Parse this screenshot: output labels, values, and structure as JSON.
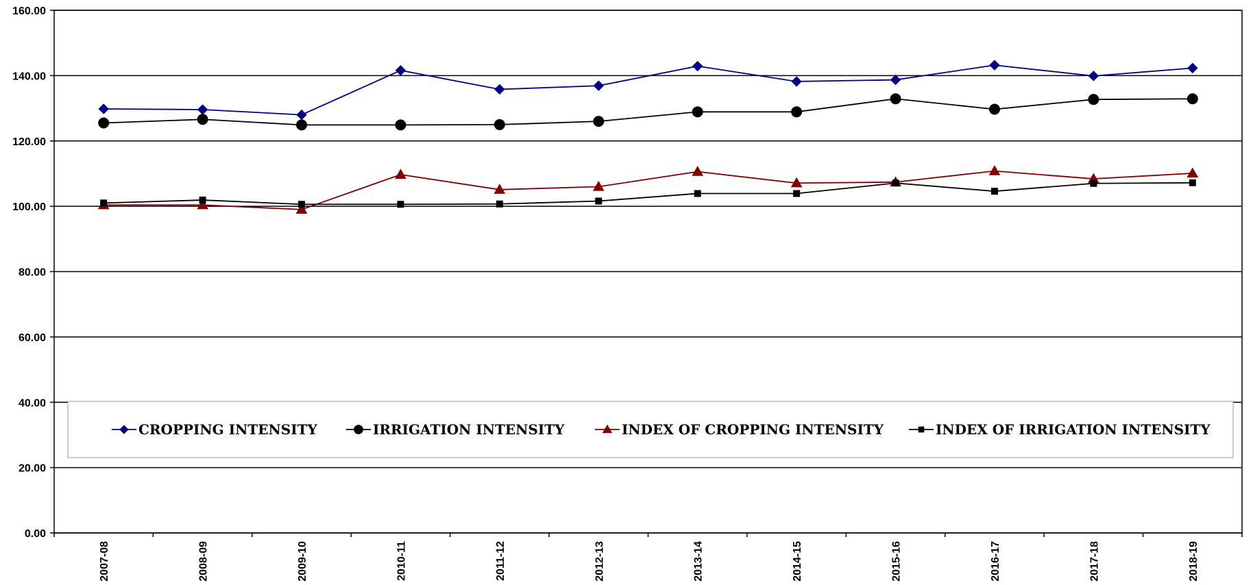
{
  "chart_data": {
    "type": "line",
    "title": "",
    "xlabel": "",
    "ylabel": "",
    "categories": [
      "2007-08",
      "2008-09",
      "2009-10",
      "2010-11",
      "2011-12",
      "2012-13",
      "2013-14",
      "2014-15",
      "2015-16",
      "2016-17",
      "2017-18",
      "2018-19"
    ],
    "ylim": [
      0,
      160
    ],
    "yticks": [
      "0.00",
      "20.00",
      "40.00",
      "60.00",
      "80.00",
      "100.00",
      "120.00",
      "140.00",
      "160.00"
    ],
    "grid": true,
    "legend_position": "lower-center",
    "series": [
      {
        "name": "CROPPING INTENSITY",
        "color": "#000080",
        "marker": "diamond",
        "values": [
          129.8,
          129.6,
          128.0,
          141.6,
          135.8,
          136.9,
          142.9,
          138.2,
          138.7,
          143.2,
          139.9,
          142.3
        ]
      },
      {
        "name": "IRRIGATION INTENSITY",
        "color": "#000000",
        "marker": "circle",
        "values": [
          125.5,
          126.6,
          124.9,
          124.9,
          125.0,
          126.0,
          128.9,
          128.9,
          132.9,
          129.7,
          132.7,
          132.9
        ]
      },
      {
        "name": "INDEX OF CROPPING INTENSITY",
        "color": "#800000",
        "marker": "triangle",
        "values": [
          100.4,
          100.4,
          99.0,
          109.7,
          105.1,
          106.0,
          110.6,
          107.1,
          107.4,
          110.8,
          108.4,
          110.1
        ]
      },
      {
        "name": "INDEX OF IRRIGATION INTENSITY",
        "color": "#000000",
        "marker": "square",
        "values": [
          101.0,
          101.9,
          100.6,
          100.6,
          100.7,
          101.6,
          103.9,
          103.9,
          107.1,
          104.6,
          107.0,
          107.2
        ]
      }
    ]
  }
}
